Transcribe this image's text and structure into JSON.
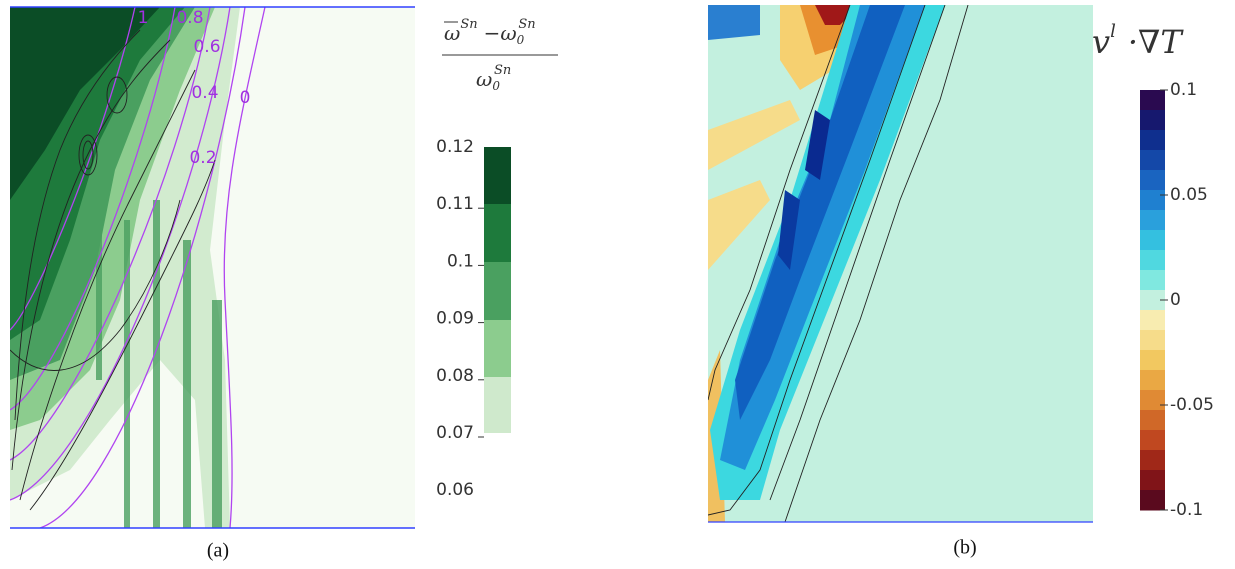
{
  "panels": [
    {
      "caption": "(a)",
      "contour_labels": [
        "1",
        "0.8",
        "0.6",
        "0.4",
        "0.2",
        "0"
      ],
      "colorbar": {
        "symbol": "ω",
        "superscript": "Sn",
        "subscript": "0",
        "minus": "−",
        "ticks": [
          "0.12",
          "0.11",
          "0.1",
          "0.09",
          "0.08",
          "0.07",
          "0.06"
        ]
      }
    },
    {
      "caption": "(b)",
      "colorbar": {
        "symbol": "v",
        "superscript": "l",
        "operator": "·∇T",
        "ticks": [
          "0.1",
          "0.05",
          "0",
          "-0.05",
          "-0.1"
        ]
      }
    }
  ]
}
